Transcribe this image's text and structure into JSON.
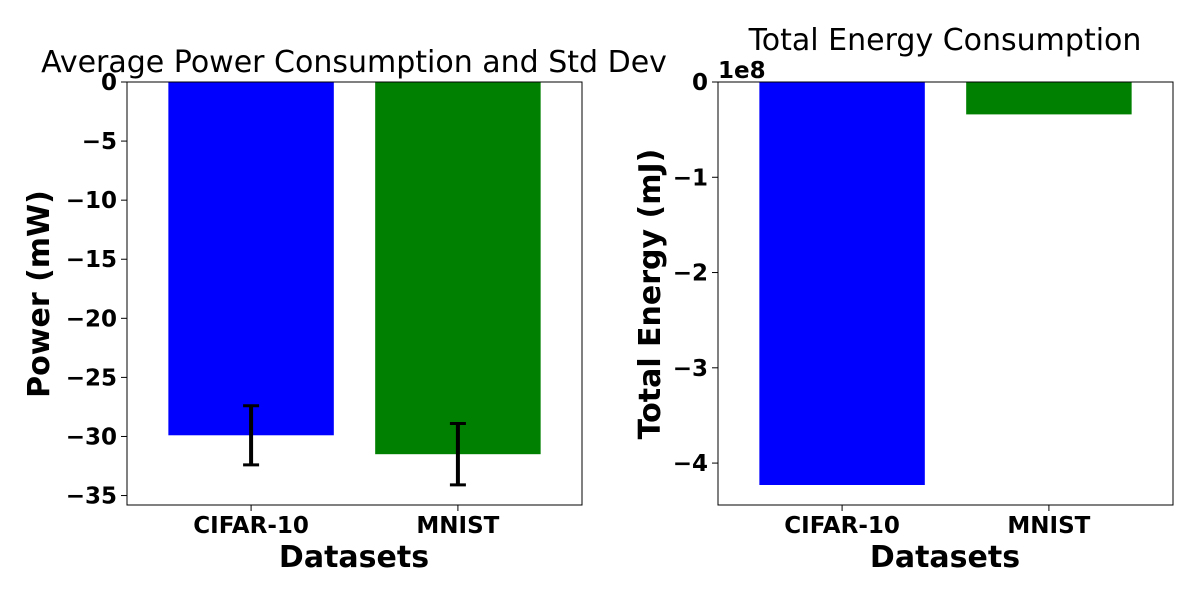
{
  "chart_data": [
    {
      "type": "bar",
      "title": "Average Power Consumption and Std Dev",
      "xlabel": "Datasets",
      "ylabel": "Power (mW)",
      "categories": [
        "CIFAR-10",
        "MNIST"
      ],
      "values": [
        -29.9,
        -31.5
      ],
      "error": [
        2.5,
        2.6
      ],
      "colors": [
        "#0000ff",
        "#008000"
      ],
      "ylim": [
        -35.8,
        0
      ],
      "yticks": [
        0,
        -5,
        -10,
        -15,
        -20,
        -25,
        -30,
        -35
      ],
      "ytick_labels": [
        "0",
        "−5",
        "−10",
        "−15",
        "−20",
        "−25",
        "−30",
        "−35"
      ],
      "grid": false
    },
    {
      "type": "bar",
      "title": "Total Energy Consumption",
      "xlabel": "Datasets",
      "ylabel": "Total Energy (mJ)",
      "categories": [
        "CIFAR-10",
        "MNIST"
      ],
      "values": [
        -423000000,
        -34000000
      ],
      "colors": [
        "#0000ff",
        "#008000"
      ],
      "ylim": [
        -444000000,
        0
      ],
      "yticks": [
        0,
        -100000000,
        -200000000,
        -300000000,
        -400000000
      ],
      "ytick_labels": [
        "0",
        "−1",
        "−2",
        "−3",
        "−4"
      ],
      "offset_label": "1e8",
      "grid": false
    }
  ]
}
